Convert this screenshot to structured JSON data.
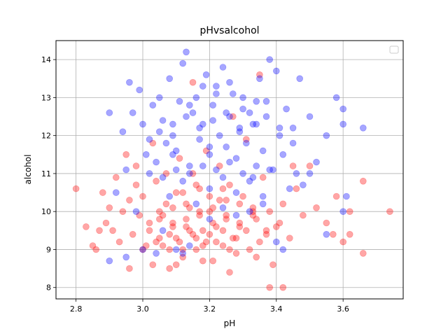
{
  "chart_data": {
    "type": "scatter",
    "title": "pHvsalcohol",
    "xlabel": "pH",
    "ylabel": "alcohol",
    "xlim": [
      2.74,
      3.78
    ],
    "ylim": [
      7.7,
      14.5
    ],
    "xticks": [
      "2.8",
      "3.0",
      "3.2",
      "3.4",
      "3.6"
    ],
    "yticks": [
      "8",
      "9",
      "10",
      "11",
      "12",
      "13",
      "14"
    ],
    "grid": true,
    "legend": "top-right",
    "legend_entries": [],
    "series": [
      {
        "color": "#ff0000",
        "alpha": 0.35,
        "points": [
          [
            2.8,
            10.6
          ],
          [
            2.83,
            9.6
          ],
          [
            2.85,
            9.1
          ],
          [
            2.86,
            9.0
          ],
          [
            2.87,
            9.5
          ],
          [
            2.88,
            10.5
          ],
          [
            2.89,
            9.7
          ],
          [
            2.9,
            10.1
          ],
          [
            2.91,
            9.5
          ],
          [
            2.92,
            10.9
          ],
          [
            2.93,
            9.2
          ],
          [
            2.94,
            10.0
          ],
          [
            2.95,
            11.5
          ],
          [
            2.96,
            10.3
          ],
          [
            2.97,
            9.4
          ],
          [
            2.98,
            10.7
          ],
          [
            2.99,
            9.9
          ],
          [
            3.0,
            10.4
          ],
          [
            3.01,
            9.1
          ],
          [
            3.02,
            9.7
          ],
          [
            3.03,
            8.6
          ],
          [
            3.04,
            10.8
          ],
          [
            3.05,
            9.3
          ],
          [
            3.06,
            9.9
          ],
          [
            3.07,
            10.2
          ],
          [
            3.08,
            9.0
          ],
          [
            3.09,
            9.6
          ],
          [
            3.1,
            10.5
          ],
          [
            3.11,
            9.2
          ],
          [
            3.12,
            8.8
          ],
          [
            3.13,
            9.8
          ],
          [
            3.14,
            10.1
          ],
          [
            3.15,
            9.4
          ],
          [
            3.16,
            9.0
          ],
          [
            3.17,
            10.6
          ],
          [
            3.18,
            9.5
          ],
          [
            3.19,
            9.2
          ],
          [
            3.2,
            10.0
          ],
          [
            3.21,
            8.7
          ],
          [
            3.22,
            9.6
          ],
          [
            3.23,
            10.3
          ],
          [
            3.24,
            9.1
          ],
          [
            3.25,
            9.9
          ],
          [
            3.26,
            10.7
          ],
          [
            3.27,
            9.3
          ],
          [
            3.28,
            8.9
          ],
          [
            3.29,
            9.7
          ],
          [
            3.3,
            10.4
          ],
          [
            3.31,
            9.5
          ],
          [
            3.32,
            9.0
          ],
          [
            3.33,
            10.1
          ],
          [
            3.34,
            9.8
          ],
          [
            3.35,
            9.2
          ],
          [
            3.36,
            10.9
          ],
          [
            3.37,
            9.4
          ],
          [
            3.38,
            10.0
          ],
          [
            3.39,
            8.6
          ],
          [
            3.4,
            9.6
          ],
          [
            3.42,
            10.2
          ],
          [
            3.44,
            9.3
          ],
          [
            3.46,
            10.6
          ],
          [
            3.48,
            9.9
          ],
          [
            3.5,
            11.2
          ],
          [
            3.52,
            10.1
          ],
          [
            3.55,
            9.7
          ],
          [
            3.58,
            10.4
          ],
          [
            3.6,
            9.2
          ],
          [
            3.62,
            10.0
          ],
          [
            3.66,
            10.8
          ],
          [
            3.74,
            10.0
          ],
          [
            3.0,
            9.0
          ],
          [
            3.02,
            9.5
          ],
          [
            3.04,
            9.2
          ],
          [
            3.06,
            9.1
          ],
          [
            3.08,
            9.4
          ],
          [
            3.1,
            9.3
          ],
          [
            3.12,
            9.0
          ],
          [
            3.14,
            9.5
          ],
          [
            3.16,
            9.3
          ],
          [
            3.18,
            9.1
          ],
          [
            3.2,
            9.4
          ],
          [
            3.22,
            9.2
          ],
          [
            3.24,
            9.5
          ],
          [
            3.26,
            9.0
          ],
          [
            3.28,
            9.3
          ],
          [
            3.05,
            10.0
          ],
          [
            3.09,
            10.1
          ],
          [
            3.13,
            10.2
          ],
          [
            3.17,
            10.0
          ],
          [
            3.21,
            10.1
          ],
          [
            3.25,
            10.3
          ],
          [
            3.29,
            10.2
          ],
          [
            3.33,
            10.0
          ],
          [
            3.07,
            11.0
          ],
          [
            3.11,
            11.4
          ],
          [
            3.15,
            11.0
          ],
          [
            3.19,
            11.6
          ],
          [
            3.23,
            11.2
          ],
          [
            3.31,
            11.9
          ],
          [
            3.27,
            12.5
          ],
          [
            2.98,
            11.2
          ],
          [
            3.03,
            11.8
          ],
          [
            3.35,
            13.6
          ],
          [
            3.15,
            13.4
          ],
          [
            3.38,
            8.0
          ],
          [
            3.42,
            8.0
          ],
          [
            3.26,
            8.4
          ],
          [
            3.08,
            8.5
          ],
          [
            3.45,
            11.2
          ],
          [
            3.62,
            9.4
          ],
          [
            3.66,
            8.9
          ],
          [
            3.57,
            9.4
          ],
          [
            2.96,
            8.5
          ],
          [
            3.1,
            8.6
          ],
          [
            3.18,
            8.7
          ],
          [
            3.34,
            8.8
          ],
          [
            3.05,
            9.8
          ],
          [
            3.09,
            9.7
          ],
          [
            3.13,
            9.6
          ],
          [
            3.17,
            9.9
          ],
          [
            3.21,
            9.7
          ],
          [
            3.25,
            9.8
          ],
          [
            3.29,
            9.6
          ],
          [
            3.33,
            9.9
          ],
          [
            3.37,
            9.5
          ],
          [
            3.41,
            9.7
          ],
          [
            3.12,
            10.5
          ],
          [
            3.16,
            10.7
          ],
          [
            3.2,
            10.4
          ],
          [
            3.24,
            10.6
          ]
        ]
      },
      {
        "color": "#0000ff",
        "alpha": 0.35,
        "points": [
          [
            2.9,
            12.6
          ],
          [
            2.92,
            10.5
          ],
          [
            2.94,
            12.1
          ],
          [
            2.95,
            11.1
          ],
          [
            2.96,
            13.4
          ],
          [
            2.97,
            12.6
          ],
          [
            2.98,
            10.0
          ],
          [
            2.99,
            13.2
          ],
          [
            3.0,
            12.3
          ],
          [
            3.01,
            11.5
          ],
          [
            3.02,
            11.9
          ],
          [
            3.03,
            12.8
          ],
          [
            3.04,
            11.3
          ],
          [
            3.05,
            13.0
          ],
          [
            3.06,
            12.4
          ],
          [
            3.07,
            11.8
          ],
          [
            3.08,
            13.5
          ],
          [
            3.09,
            12.0
          ],
          [
            3.1,
            11.6
          ],
          [
            3.11,
            12.9
          ],
          [
            3.12,
            13.9
          ],
          [
            3.13,
            14.2
          ],
          [
            3.14,
            11.2
          ],
          [
            3.15,
            12.6
          ],
          [
            3.16,
            13.0
          ],
          [
            3.17,
            11.9
          ],
          [
            3.18,
            12.3
          ],
          [
            3.19,
            13.6
          ],
          [
            3.2,
            11.5
          ],
          [
            3.21,
            12.8
          ],
          [
            3.22,
            13.3
          ],
          [
            3.23,
            12.0
          ],
          [
            3.24,
            13.8
          ],
          [
            3.25,
            11.7
          ],
          [
            3.26,
            12.5
          ],
          [
            3.27,
            13.1
          ],
          [
            3.28,
            11.4
          ],
          [
            3.29,
            12.2
          ],
          [
            3.3,
            13.0
          ],
          [
            3.31,
            11.8
          ],
          [
            3.32,
            12.6
          ],
          [
            3.33,
            10.9
          ],
          [
            3.34,
            12.3
          ],
          [
            3.35,
            13.5
          ],
          [
            3.36,
            11.6
          ],
          [
            3.37,
            12.9
          ],
          [
            3.38,
            14.0
          ],
          [
            3.39,
            11.1
          ],
          [
            3.4,
            13.7
          ],
          [
            3.41,
            12.0
          ],
          [
            3.42,
            11.5
          ],
          [
            3.43,
            12.7
          ],
          [
            3.44,
            10.6
          ],
          [
            3.45,
            12.2
          ],
          [
            3.46,
            11.0
          ],
          [
            3.47,
            13.5
          ],
          [
            3.48,
            10.7
          ],
          [
            3.5,
            12.5
          ],
          [
            3.52,
            11.3
          ],
          [
            3.55,
            12.0
          ],
          [
            3.58,
            13.0
          ],
          [
            3.6,
            12.7
          ],
          [
            3.6,
            12.3
          ],
          [
            3.61,
            10.4
          ],
          [
            3.66,
            12.2
          ],
          [
            3.6,
            10.0
          ],
          [
            3.55,
            9.4
          ],
          [
            3.4,
            9.2
          ],
          [
            3.42,
            9.0
          ],
          [
            3.06,
            9.5
          ],
          [
            3.04,
            8.9
          ],
          [
            3.1,
            9.0
          ],
          [
            3.12,
            8.9
          ],
          [
            3.14,
            9.1
          ],
          [
            3.0,
            9.0
          ],
          [
            2.95,
            8.8
          ],
          [
            2.9,
            8.7
          ],
          [
            3.08,
            10.4
          ],
          [
            3.12,
            10.8
          ],
          [
            3.16,
            10.2
          ],
          [
            3.2,
            10.6
          ],
          [
            3.24,
            10.9
          ],
          [
            3.28,
            10.5
          ],
          [
            3.32,
            10.8
          ],
          [
            3.36,
            10.4
          ],
          [
            3.02,
            11.0
          ],
          [
            3.06,
            10.9
          ],
          [
            3.1,
            11.1
          ],
          [
            3.14,
            11.0
          ],
          [
            3.18,
            11.2
          ],
          [
            3.22,
            11.1
          ],
          [
            3.26,
            11.3
          ],
          [
            3.3,
            11.0
          ],
          [
            3.34,
            11.2
          ],
          [
            3.38,
            11.1
          ],
          [
            3.05,
            12.1
          ],
          [
            3.09,
            12.3
          ],
          [
            3.13,
            12.5
          ],
          [
            3.17,
            12.2
          ],
          [
            3.21,
            12.4
          ],
          [
            3.25,
            12.6
          ],
          [
            3.29,
            12.1
          ],
          [
            3.33,
            12.3
          ],
          [
            3.37,
            12.5
          ],
          [
            3.41,
            12.2
          ],
          [
            3.2,
            9.8
          ],
          [
            3.24,
            10.1
          ],
          [
            3.28,
            9.9
          ],
          [
            3.32,
            10.0
          ],
          [
            3.36,
            10.2
          ],
          [
            3.18,
            13.3
          ],
          [
            3.22,
            13.1
          ],
          [
            3.26,
            13.4
          ],
          [
            3.14,
            12.8
          ],
          [
            3.3,
            12.7
          ],
          [
            3.34,
            12.9
          ],
          [
            3.09,
            11.5
          ],
          [
            3.2,
            11.7
          ],
          [
            3.45,
            11.8
          ],
          [
            3.5,
            11.0
          ]
        ]
      }
    ]
  }
}
